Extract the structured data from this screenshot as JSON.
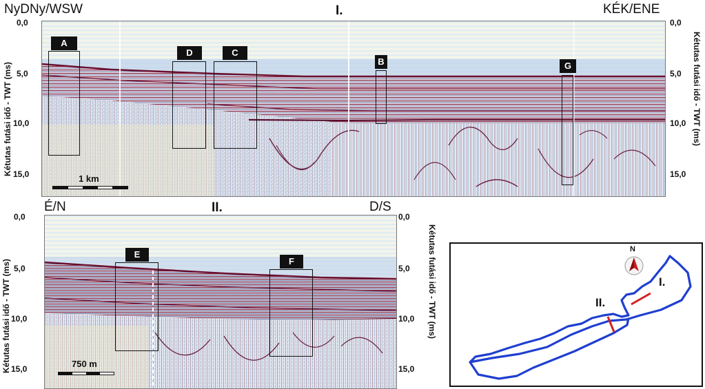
{
  "profile1": {
    "left_label": "NyDNy/WSW",
    "roman": "I.",
    "right_label": "KÉK/ENE",
    "y_ticks": [
      "0,0",
      "5,0",
      "10,0",
      "15,0"
    ],
    "y_axis_label": "Kétutas futási idő - TWT (ms)",
    "scale_label": "1 km",
    "boxes": [
      "A",
      "D",
      "C",
      "B",
      "G"
    ]
  },
  "profile2": {
    "left_label": "É/N",
    "roman": "II.",
    "right_label": "D/S",
    "y_ticks": [
      "0,0",
      "5,0",
      "10,0",
      "15,0"
    ],
    "y_axis_label": "Kétutas futási idő - TWT (ms)",
    "scale_label": "750 m",
    "boxes": [
      "E",
      "F"
    ]
  },
  "location_map": {
    "north_label": "N",
    "line1_label": "I.",
    "line2_label": "II.",
    "outline_color": "#1f3fd0",
    "line_color": "#d42020"
  },
  "colors": {
    "seismic_red": "#7a1f3a",
    "seismic_blue": "#3b6fb0",
    "water_band_green": "#d6ecc4",
    "water_band_blue": "#cfe0f2"
  }
}
